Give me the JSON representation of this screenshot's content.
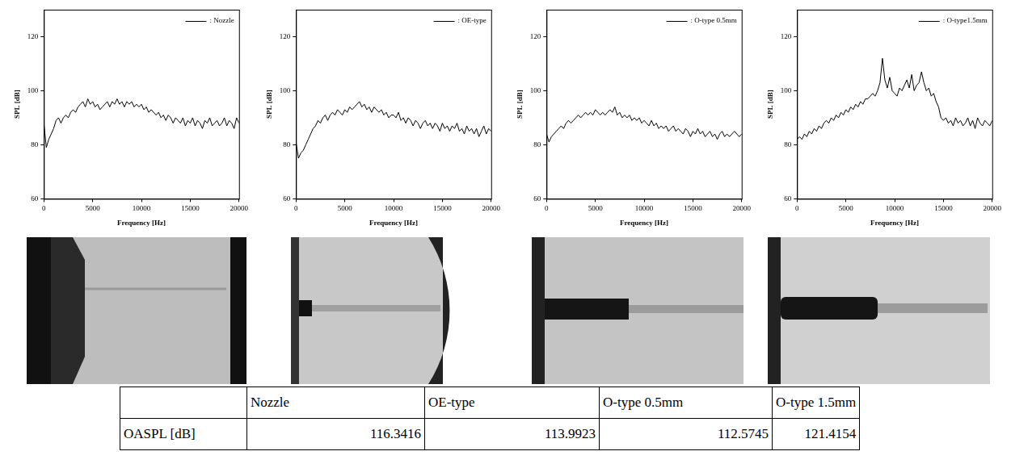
{
  "chart_data": [
    {
      "type": "line",
      "x_label": "Frequency [Hz]",
      "y_label": "SPL [dB]",
      "x": [
        0,
        250,
        500,
        750,
        1000,
        1250,
        1500,
        1750,
        2000,
        2250,
        2500,
        2750,
        3000,
        3250,
        3500,
        3750,
        4000,
        4250,
        4500,
        4750,
        5000,
        5250,
        5500,
        5750,
        6000,
        6250,
        6500,
        6750,
        7000,
        7250,
        7500,
        7750,
        8000,
        8250,
        8500,
        8750,
        9000,
        9250,
        9500,
        9750,
        10000,
        10250,
        10500,
        10750,
        11000,
        11250,
        11500,
        11750,
        12000,
        12250,
        12500,
        12750,
        13000,
        13250,
        13500,
        13750,
        14000,
        14250,
        14500,
        14750,
        15000,
        15250,
        15500,
        15750,
        16000,
        16250,
        16500,
        16750,
        17000,
        17250,
        17500,
        17750,
        18000,
        18250,
        18500,
        18750,
        19000,
        19250,
        19500,
        19750,
        20000
      ],
      "series": [
        {
          "name": ": Nozzle",
          "color": "#000000",
          "values": [
            88,
            79,
            82,
            84,
            86,
            89,
            90,
            88,
            90,
            91,
            90,
            92,
            93,
            92,
            94,
            95,
            96,
            94,
            97,
            95,
            96,
            94,
            95,
            93,
            94,
            95,
            96,
            94,
            96,
            95,
            97,
            95,
            96,
            94,
            96,
            95,
            96,
            94,
            95,
            94,
            95,
            93,
            94,
            92,
            93,
            92,
            91,
            92,
            90,
            91,
            89,
            91,
            90,
            88,
            90,
            89,
            88,
            90,
            87,
            89,
            88,
            90,
            87,
            89,
            88,
            86,
            89,
            88,
            90,
            87,
            88,
            89,
            87,
            88,
            90,
            87,
            89,
            88,
            86,
            90,
            88
          ]
        }
      ],
      "xlim": [
        0,
        20000
      ],
      "xticks": [
        0,
        5000,
        10000,
        15000,
        20000
      ],
      "ylim": [
        60,
        130
      ],
      "yticks": [
        60,
        80,
        100,
        120
      ],
      "grid": false,
      "legend": "upper right"
    },
    {
      "type": "line",
      "x_label": "Frequency [Hz]",
      "y_label": "SPL [dB]",
      "x": [
        0,
        250,
        500,
        750,
        1000,
        1250,
        1500,
        1750,
        2000,
        2250,
        2500,
        2750,
        3000,
        3250,
        3500,
        3750,
        4000,
        4250,
        4500,
        4750,
        5000,
        5250,
        5500,
        5750,
        6000,
        6250,
        6500,
        6750,
        7000,
        7250,
        7500,
        7750,
        8000,
        8250,
        8500,
        8750,
        9000,
        9250,
        9500,
        9750,
        10000,
        10250,
        10500,
        10750,
        11000,
        11250,
        11500,
        11750,
        12000,
        12250,
        12500,
        12750,
        13000,
        13250,
        13500,
        13750,
        14000,
        14250,
        14500,
        14750,
        15000,
        15250,
        15500,
        15750,
        16000,
        16250,
        16500,
        16750,
        17000,
        17250,
        17500,
        17750,
        18000,
        18250,
        18500,
        18750,
        19000,
        19250,
        19500,
        19750,
        20000
      ],
      "series": [
        {
          "name": ": OE-type",
          "color": "#000000",
          "values": [
            81,
            75,
            77,
            78,
            80,
            82,
            84,
            86,
            87,
            89,
            88,
            90,
            91,
            89,
            91,
            92,
            91,
            93,
            92,
            91,
            93,
            92,
            94,
            93,
            94,
            95,
            96,
            94,
            95,
            93,
            94,
            92,
            94,
            93,
            92,
            93,
            91,
            92,
            90,
            91,
            91,
            90,
            92,
            89,
            90,
            88,
            90,
            89,
            87,
            89,
            88,
            86,
            88,
            89,
            87,
            88,
            86,
            88,
            87,
            85,
            88,
            86,
            87,
            85,
            87,
            86,
            88,
            85,
            86,
            84,
            87,
            85,
            86,
            84,
            86,
            83,
            85,
            87,
            84,
            86,
            85
          ]
        }
      ],
      "xlim": [
        0,
        20000
      ],
      "xticks": [
        0,
        5000,
        10000,
        15000,
        20000
      ],
      "ylim": [
        60,
        130
      ],
      "yticks": [
        60,
        80,
        100,
        120
      ],
      "grid": false,
      "legend": "upper right"
    },
    {
      "type": "line",
      "x_label": "Frequency [Hz]",
      "y_label": "SPL [dB]",
      "x": [
        0,
        250,
        500,
        750,
        1000,
        1250,
        1500,
        1750,
        2000,
        2250,
        2500,
        2750,
        3000,
        3250,
        3500,
        3750,
        4000,
        4250,
        4500,
        4750,
        5000,
        5250,
        5500,
        5750,
        6000,
        6250,
        6500,
        6750,
        7000,
        7250,
        7500,
        7750,
        8000,
        8250,
        8500,
        8750,
        9000,
        9250,
        9500,
        9750,
        10000,
        10250,
        10500,
        10750,
        11000,
        11250,
        11500,
        11750,
        12000,
        12250,
        12500,
        12750,
        13000,
        13250,
        13500,
        13750,
        14000,
        14250,
        14500,
        14750,
        15000,
        15250,
        15500,
        15750,
        16000,
        16250,
        16500,
        16750,
        17000,
        17250,
        17500,
        17750,
        18000,
        18250,
        18500,
        18750,
        19000,
        19250,
        19500,
        19750,
        20000
      ],
      "series": [
        {
          "name": ": O-type 0.5mm",
          "color": "#000000",
          "values": [
            84,
            81,
            83,
            84,
            85,
            86,
            87,
            86,
            88,
            89,
            88,
            89,
            90,
            91,
            90,
            91,
            92,
            91,
            92,
            91,
            93,
            92,
            91,
            92,
            91,
            92,
            93,
            92,
            94,
            91,
            92,
            90,
            91,
            90,
            91,
            89,
            90,
            89,
            90,
            88,
            89,
            88,
            87,
            89,
            87,
            88,
            86,
            87,
            86,
            87,
            85,
            86,
            87,
            85,
            86,
            85,
            84,
            86,
            85,
            83,
            85,
            84,
            86,
            84,
            85,
            83,
            84,
            85,
            83,
            84,
            82,
            84,
            85,
            83,
            84,
            83,
            84,
            85,
            84,
            83,
            84
          ]
        }
      ],
      "xlim": [
        0,
        20000
      ],
      "xticks": [
        0,
        5000,
        10000,
        15000,
        20000
      ],
      "ylim": [
        60,
        130
      ],
      "yticks": [
        60,
        80,
        100,
        120
      ],
      "grid": false,
      "legend": "upper right"
    },
    {
      "type": "line",
      "x_label": "Frequency [Hz]",
      "y_label": "SPL [dB]",
      "x": [
        0,
        250,
        500,
        750,
        1000,
        1250,
        1500,
        1750,
        2000,
        2250,
        2500,
        2750,
        3000,
        3250,
        3500,
        3750,
        4000,
        4250,
        4500,
        4750,
        5000,
        5250,
        5500,
        5750,
        6000,
        6250,
        6500,
        6750,
        7000,
        7250,
        7500,
        7750,
        8000,
        8250,
        8500,
        8750,
        9000,
        9250,
        9500,
        9750,
        10000,
        10250,
        10500,
        10750,
        11000,
        11250,
        11500,
        11750,
        12000,
        12250,
        12500,
        12750,
        13000,
        13250,
        13500,
        13750,
        14000,
        14250,
        14500,
        14750,
        15000,
        15250,
        15500,
        15750,
        16000,
        16250,
        16500,
        16750,
        17000,
        17250,
        17500,
        17750,
        18000,
        18250,
        18500,
        18750,
        19000,
        19250,
        19500,
        19750,
        20000
      ],
      "series": [
        {
          "name": ": O-type1.5mm",
          "color": "#000000",
          "values": [
            82,
            83,
            82,
            84,
            83,
            85,
            84,
            86,
            85,
            87,
            86,
            88,
            89,
            88,
            90,
            89,
            91,
            90,
            92,
            91,
            93,
            92,
            94,
            93,
            95,
            94,
            96,
            95,
            97,
            97,
            98,
            99,
            98,
            100,
            103,
            112,
            104,
            101,
            105,
            100,
            99,
            98,
            101,
            100,
            102,
            104,
            101,
            106,
            100,
            102,
            103,
            107,
            103,
            100,
            101,
            98,
            99,
            96,
            94,
            90,
            89,
            90,
            88,
            89,
            87,
            90,
            88,
            89,
            87,
            88,
            90,
            87,
            89,
            86,
            90,
            88,
            87,
            89,
            88,
            87,
            89
          ]
        }
      ],
      "xlim": [
        0,
        20000
      ],
      "xticks": [
        0,
        5000,
        10000,
        15000,
        20000
      ],
      "ylim": [
        60,
        130
      ],
      "yticks": [
        60,
        80,
        100,
        120
      ],
      "grid": false,
      "legend": "upper right"
    }
  ],
  "table": {
    "columns": [
      "Nozzle",
      "OE-type",
      "O-type 0.5mm",
      "O-type 1.5mm"
    ],
    "rows": [
      {
        "label": "OASPL [dB]",
        "values": [
          116.3416,
          113.9923,
          112.5745,
          121.4154
        ]
      }
    ]
  }
}
